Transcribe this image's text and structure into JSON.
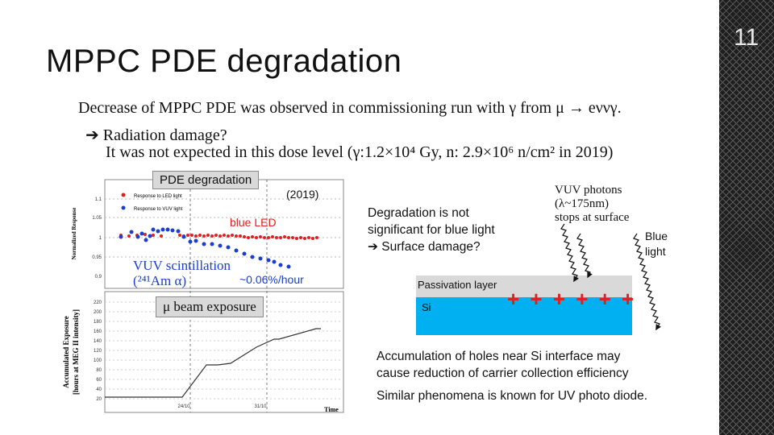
{
  "slide": {
    "title": "MPPC PDE degradation",
    "number": "11"
  },
  "bullets": {
    "line1": "Decrease of MPPC PDE was observed in commissioning run with γ from μ → eννγ.",
    "line2": "➔ Radiation damage?",
    "line3": "It was not expected in this dose level (γ:1.2×10⁴ Gy, n: 2.9×10⁶ n/cm² in 2019)"
  },
  "plot": {
    "top_label": "PDE degradation",
    "year": "(2019)",
    "blue_led": "blue LED",
    "rate": "~0.06%/hour",
    "vuv_line1": "VUV scintillation",
    "vuv_line2": "(²⁴¹Am α)",
    "exposure": "μ beam exposure",
    "legend_led": "Response to LED light",
    "legend_vuv": "Response to VUV light",
    "ylabel_top": "Normalized Response",
    "ylabel_bottom_1": "Accumulated Exposure",
    "ylabel_bottom_2": "[hours at MEG II intensity]",
    "xlabel": "Time",
    "x_ticks": [
      "24/10",
      "31/10"
    ],
    "y_ticks_top": [
      "1.1",
      "1.05",
      "1",
      "0.95",
      "0.9"
    ],
    "y_ticks_bottom": [
      "220",
      "200",
      "180",
      "160",
      "140",
      "120",
      "100",
      "80",
      "60",
      "40",
      "20"
    ],
    "colors": {
      "led": "#e02020",
      "vuv": "#1a3fd0"
    }
  },
  "diagram": {
    "degr_line1": "Degradation is not",
    "degr_line2": "significant for blue light",
    "degr_line3": "➔ Surface damage?",
    "vuv_line1": "VUV photons",
    "vuv_line2": "(λ~175nm)",
    "vuv_line3": "stops at surface",
    "blue1": "Blue",
    "blue2": "light",
    "passivation": "Passivation layer",
    "si": "Si",
    "plus": "+ + + + + +",
    "colors": {
      "si": "#00b0f0",
      "passivation": "#d9d9d9"
    }
  },
  "notes": {
    "accum_line1": "Accumulation of holes near Si interface may",
    "accum_line2": "cause reduction of carrier collection efficiency",
    "similar": "Similar phenomena is known for UV photo diode."
  }
}
